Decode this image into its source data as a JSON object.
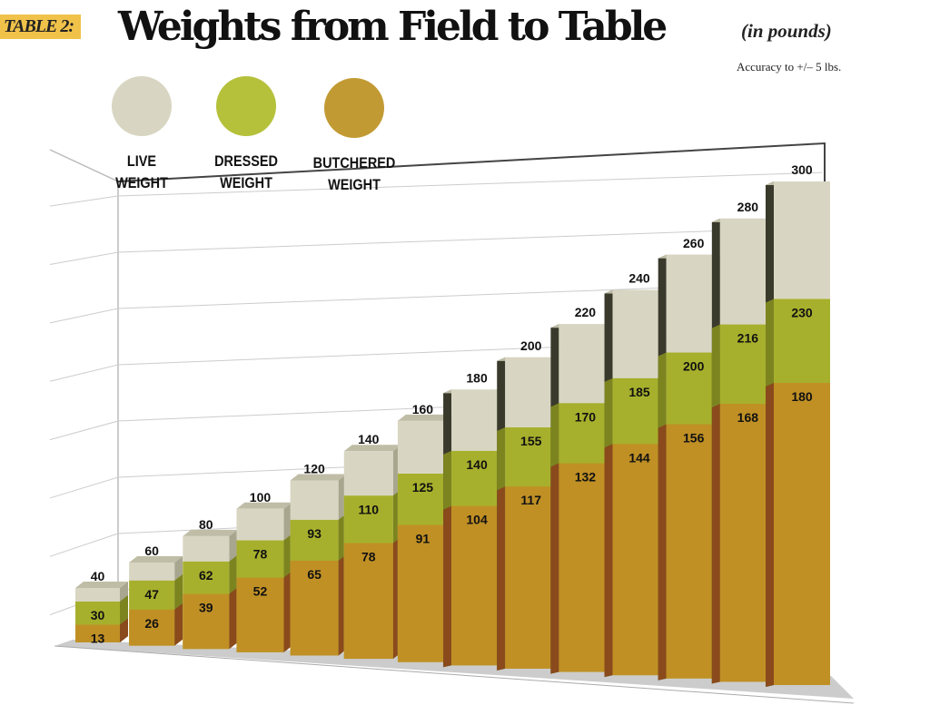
{
  "chart_data": {
    "type": "bar",
    "stacked": false,
    "layout": "3d-overlapping",
    "title": "Weights from Field to Table",
    "tag": "TABLE 2:",
    "units": "(in pounds)",
    "note": "Accuracy to +/– 5 lbs.",
    "legend_placement": "top-left",
    "grid": true,
    "series": [
      {
        "name": "LIVE WEIGHT",
        "label_lines": [
          "LIVE",
          "WEIGHT"
        ],
        "color": "#d8d6c2",
        "values": [
          40,
          60,
          80,
          100,
          120,
          140,
          160,
          180,
          200,
          220,
          240,
          260,
          280,
          300
        ]
      },
      {
        "name": "DRESSED WEIGHT",
        "label_lines": [
          "DRESSED",
          "WEIGHT"
        ],
        "color": "#a7b02c",
        "values": [
          30,
          47,
          62,
          78,
          93,
          110,
          125,
          140,
          155,
          170,
          185,
          200,
          216,
          230
        ]
      },
      {
        "name": "BUTCHERED WEIGHT",
        "label_lines": [
          "BUTCHERED",
          "WEIGHT"
        ],
        "color": "#c09025",
        "values": [
          13,
          26,
          39,
          52,
          65,
          78,
          91,
          104,
          117,
          132,
          144,
          156,
          168,
          180
        ]
      }
    ],
    "legend_colors": [
      "#d8d6c2",
      "#b5c13a",
      "#c29a33"
    ]
  }
}
